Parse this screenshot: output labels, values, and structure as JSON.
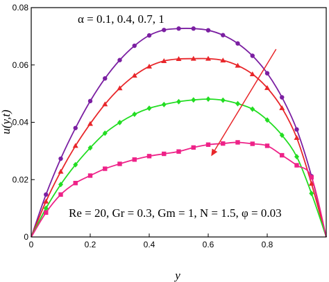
{
  "chart_data": {
    "type": "line",
    "title": "",
    "xlabel": "y",
    "ylabel": "u(y,t)",
    "xlim": [
      0,
      1
    ],
    "ylim": [
      0,
      0.08
    ],
    "xticks": [
      "0",
      "0.2",
      "0.4",
      "0.6",
      "0.8"
    ],
    "yticks": [
      "0",
      "0.02",
      "0.04",
      "0.06",
      "0.08"
    ],
    "grid": false,
    "legend": "none",
    "annotations": {
      "alpha_text": "α = 0.1, 0.4, 0.7, 1",
      "params_text": "Re = 20, Gr = 0.3, Gm = 1, N = 1.5, φ = 0.03",
      "arrow": {
        "from": [
          0.83,
          0.0655
        ],
        "to": [
          0.61,
          0.0282
        ]
      }
    },
    "series": [
      {
        "color": "#7b1fa2",
        "marker": "circle",
        "x": [
          0,
          0.05,
          0.1,
          0.15,
          0.2,
          0.25,
          0.3,
          0.35,
          0.4,
          0.45,
          0.5,
          0.55,
          0.6,
          0.65,
          0.7,
          0.75,
          0.8,
          0.85,
          0.9,
          0.95,
          1.0
        ],
        "y": [
          0,
          0.0148,
          0.0273,
          0.038,
          0.0474,
          0.0553,
          0.0617,
          0.0667,
          0.0703,
          0.0722,
          0.0727,
          0.0727,
          0.0721,
          0.0704,
          0.0675,
          0.0632,
          0.0571,
          0.0487,
          0.0375,
          0.0212,
          0
        ]
      },
      {
        "color": "#e8262a",
        "marker": "triangle",
        "x": [
          0,
          0.05,
          0.1,
          0.15,
          0.2,
          0.25,
          0.3,
          0.35,
          0.4,
          0.45,
          0.5,
          0.55,
          0.6,
          0.65,
          0.7,
          0.75,
          0.8,
          0.85,
          0.9,
          0.95,
          1.0
        ],
        "y": [
          0,
          0.0124,
          0.0228,
          0.0318,
          0.0395,
          0.0463,
          0.0519,
          0.0563,
          0.0595,
          0.0614,
          0.0621,
          0.0622,
          0.0622,
          0.0616,
          0.0598,
          0.0568,
          0.052,
          0.045,
          0.0346,
          0.0186,
          0
        ]
      },
      {
        "color": "#22dd22",
        "marker": "diamond",
        "x": [
          0,
          0.05,
          0.1,
          0.15,
          0.2,
          0.25,
          0.3,
          0.35,
          0.4,
          0.45,
          0.5,
          0.55,
          0.6,
          0.65,
          0.7,
          0.75,
          0.8,
          0.85,
          0.9,
          0.95,
          1.0
        ],
        "y": [
          0,
          0.01,
          0.0183,
          0.0252,
          0.0311,
          0.0362,
          0.0399,
          0.0428,
          0.0449,
          0.0462,
          0.0472,
          0.0478,
          0.0481,
          0.0477,
          0.0465,
          0.0446,
          0.0408,
          0.0355,
          0.028,
          0.0152,
          0
        ]
      },
      {
        "color": "#ee2288",
        "marker": "square",
        "x": [
          0,
          0.05,
          0.1,
          0.15,
          0.2,
          0.25,
          0.3,
          0.35,
          0.4,
          0.45,
          0.5,
          0.55,
          0.6,
          0.65,
          0.7,
          0.75,
          0.8,
          0.85,
          0.9,
          0.95,
          1.0
        ],
        "y": [
          0,
          0.0085,
          0.0148,
          0.0188,
          0.0214,
          0.0238,
          0.0255,
          0.027,
          0.0282,
          0.029,
          0.0298,
          0.0312,
          0.0322,
          0.0326,
          0.033,
          0.0325,
          0.0318,
          0.0285,
          0.025,
          0.0208,
          0
        ]
      }
    ]
  }
}
